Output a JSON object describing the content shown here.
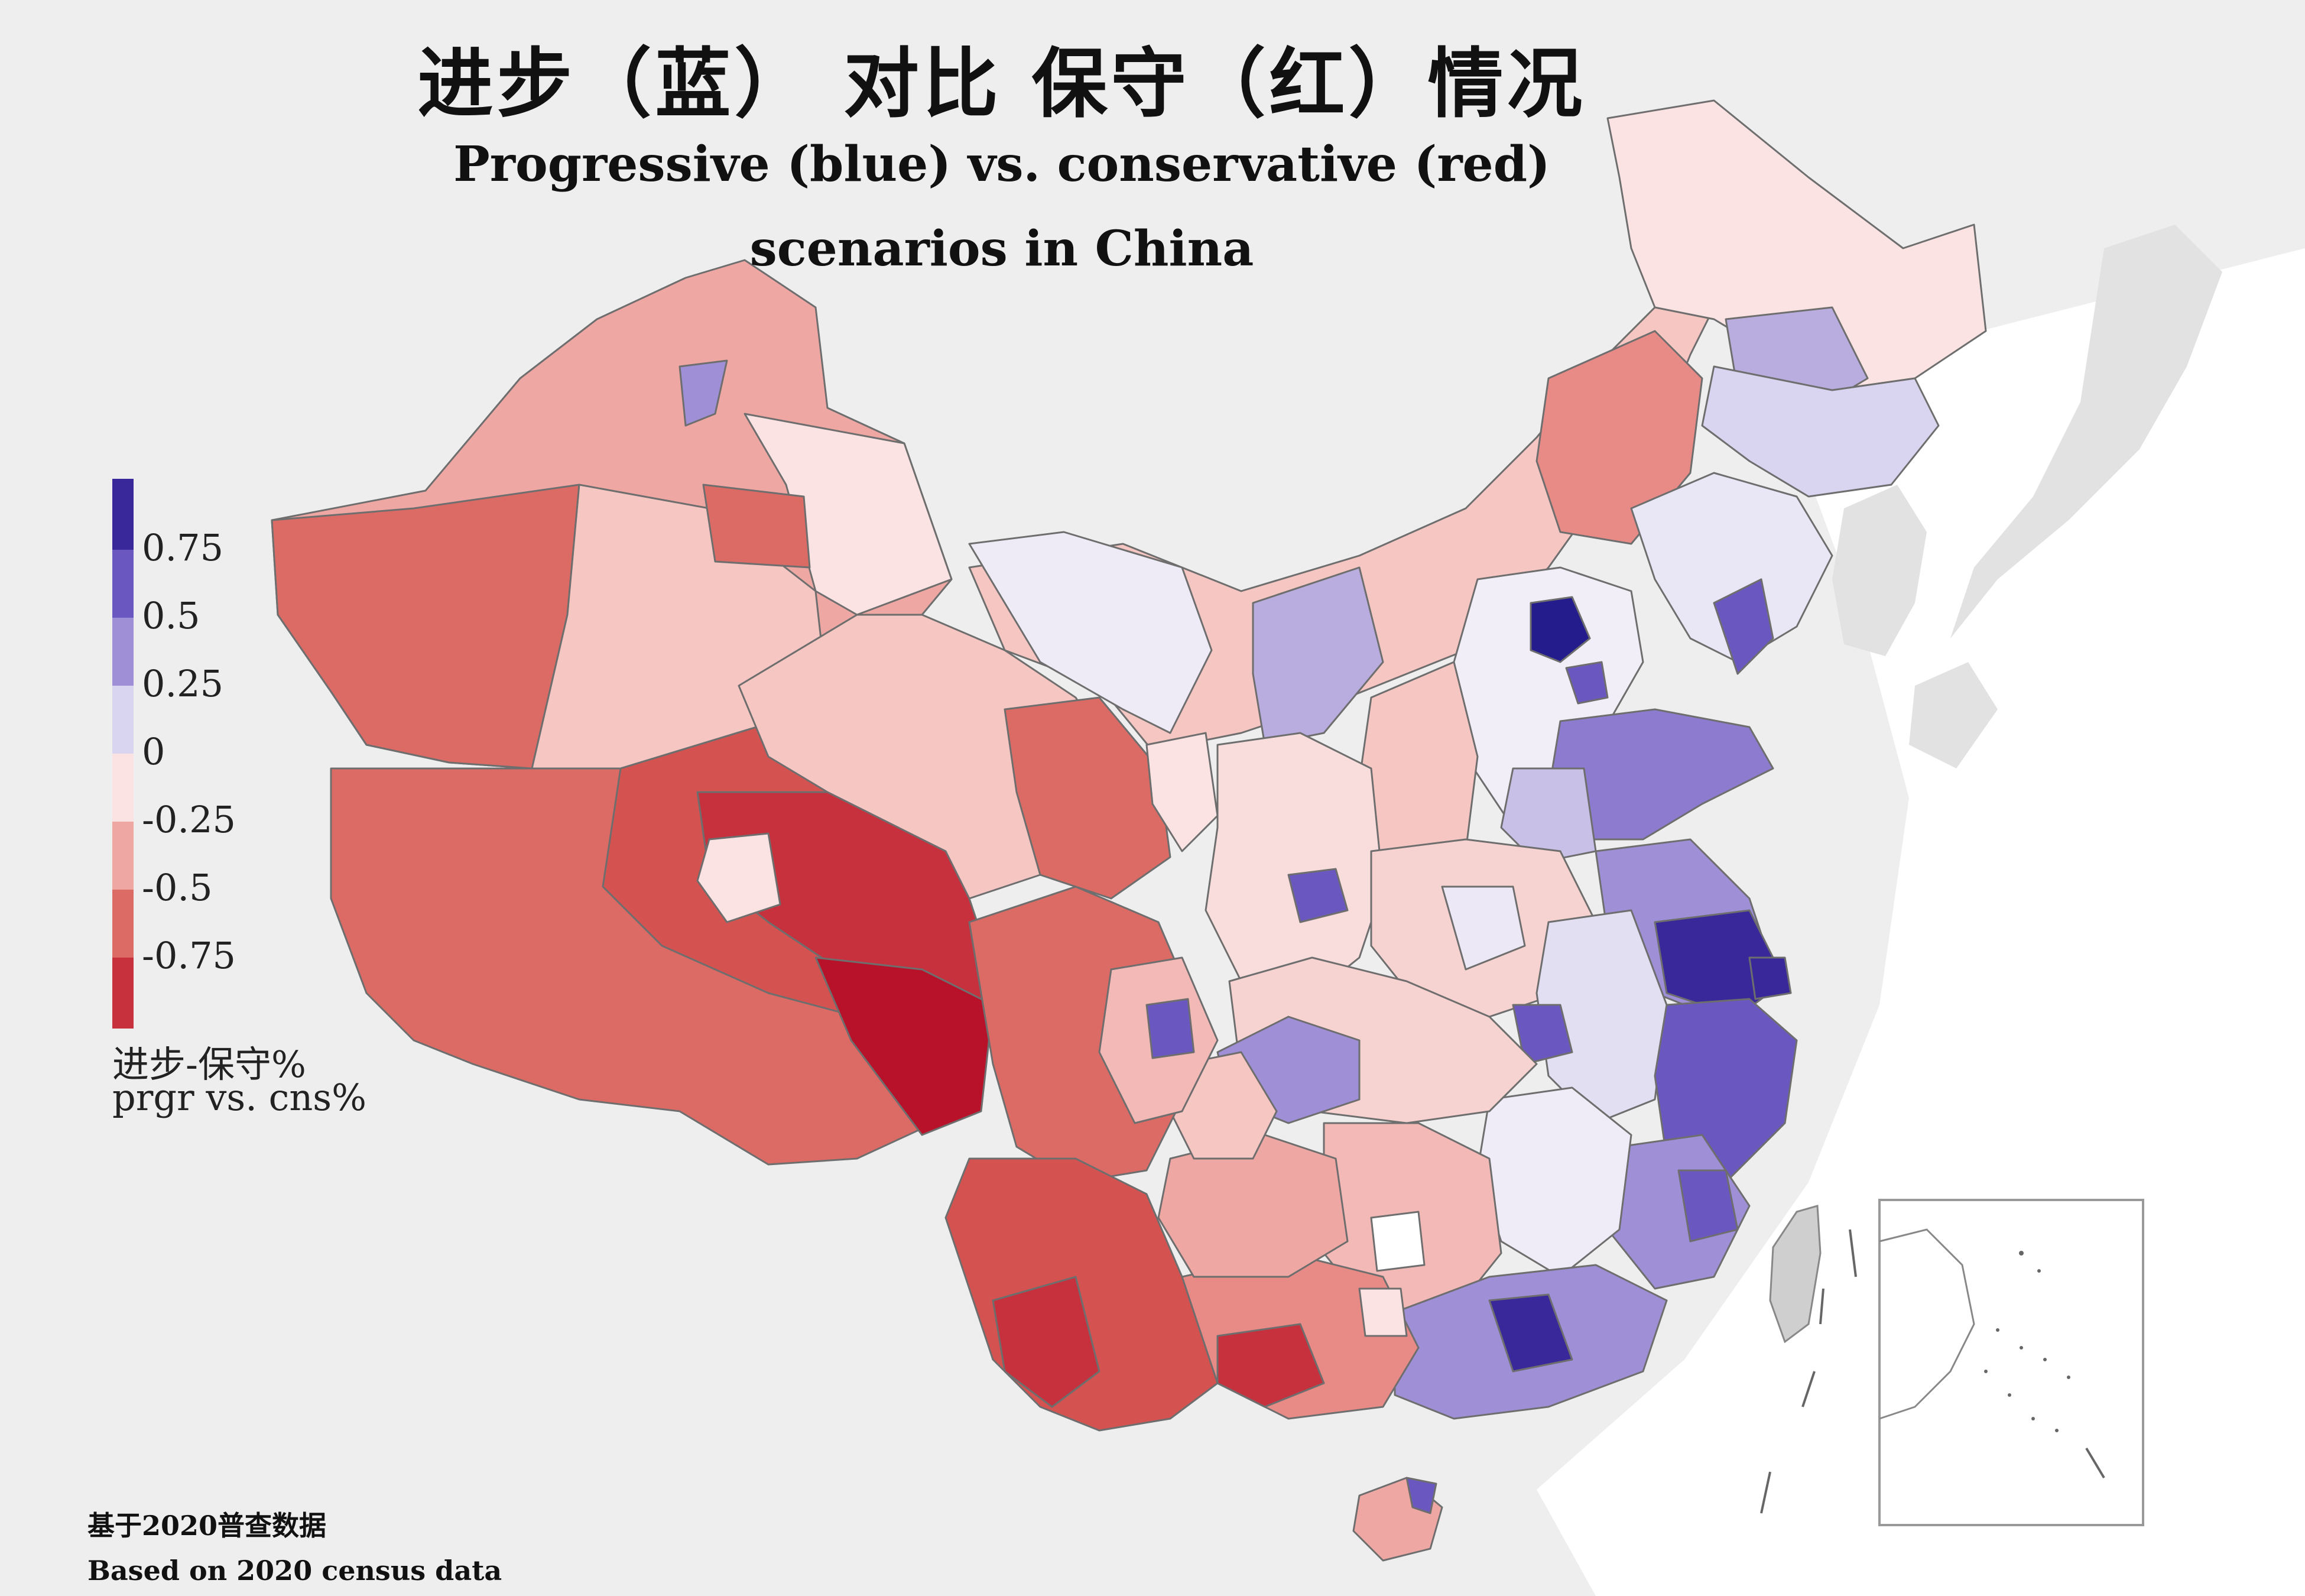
{
  "title": {
    "zh": "进步（蓝） 对比 保守（红）情况",
    "en_line1": "Progressive (blue) vs. conservative (red)",
    "en_line2": "scenarios in China"
  },
  "legend": {
    "ticks": [
      "0.75",
      "0.5",
      "0.25",
      "0",
      "-0.25",
      "-0.5",
      "-0.75"
    ],
    "caption_zh": "进步-保守%",
    "caption_en": "prgr vs. cns%",
    "bins": [
      {
        "range": "0.75 to 1",
        "color": "#38289a"
      },
      {
        "range": "0.5 to 0.75",
        "color": "#6a57c0"
      },
      {
        "range": "0.25 to 0.5",
        "color": "#9f8fd6"
      },
      {
        "range": "0 to 0.25",
        "color": "#d9d4ef"
      },
      {
        "range": "-0.25 to 0",
        "color": "#fbe3e3"
      },
      {
        "range": "-0.5 to -0.25",
        "color": "#efa7a4"
      },
      {
        "range": "-0.75 to -0.5",
        "color": "#dc6a65"
      },
      {
        "range": "-1 to -0.75",
        "color": "#c7303d"
      }
    ]
  },
  "colors": {
    "background": "#eeeeee",
    "neighbor_land": "#e3e3e3",
    "sea": "#ffffff",
    "border": "#777777",
    "strong_blue": "#241c8c",
    "strong_red": "#b8122a"
  },
  "source": {
    "zh": "基于2020普查数据",
    "en": "Based on 2020 census data"
  }
}
